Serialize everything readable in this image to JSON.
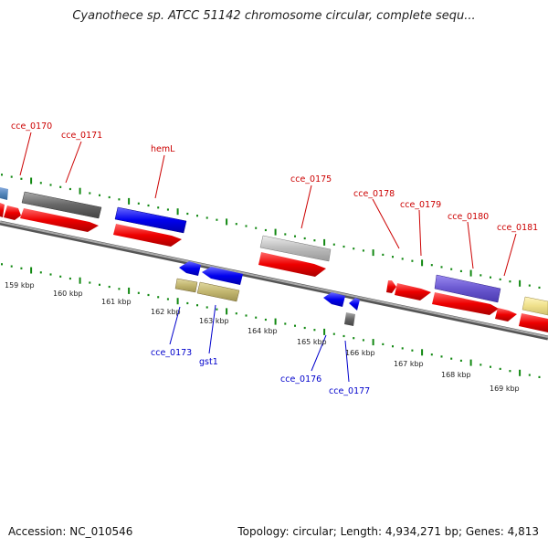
{
  "title": "Cyanothece sp. ATCC 51142 chromosome circular, complete sequ...",
  "footer": {
    "accession": "Accession: NC_010546",
    "summary": "Topology: circular; Length: 4,934,271 bp; Genes: 4,813"
  },
  "colors": {
    "forward_gene": "#ee0000",
    "reverse_gene": "#0000ee",
    "tick": "#118811",
    "backbone": "#888888",
    "top_label": "#cc0000",
    "bottom_label": "#0000cc"
  },
  "kbp_labels": [
    "159 kbp",
    "160 kbp",
    "161 kbp",
    "162 kbp",
    "163 kbp",
    "164 kbp",
    "165 kbp",
    "166 kbp",
    "167 kbp",
    "168 kbp",
    "169 kbp"
  ],
  "top_gene_labels": [
    "cce_0170",
    "cce_0171",
    "hemL",
    "cce_0175",
    "cce_0178",
    "cce_0179",
    "cce_0180",
    "cce_0181"
  ],
  "bottom_gene_labels": [
    "cce_0173",
    "gst1",
    "cce_0176",
    "cce_0177"
  ]
}
